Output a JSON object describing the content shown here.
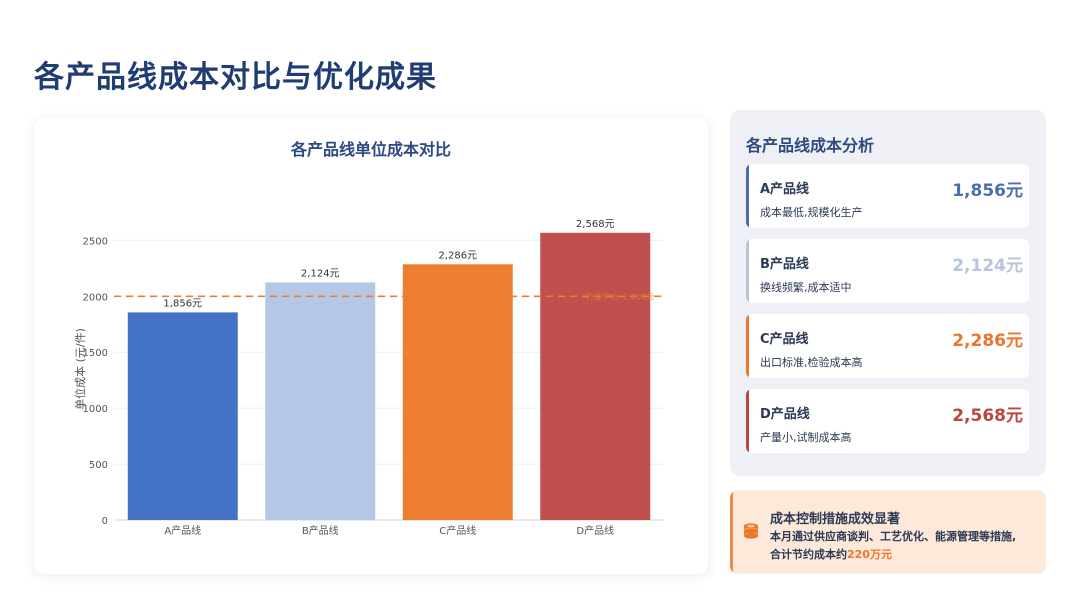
{
  "page": {
    "title": "各产品线成本对比与优化成果"
  },
  "chart_data": {
    "type": "bar",
    "title": "各产品线单位成本对比",
    "categories": [
      "A产品线",
      "B产品线",
      "C产品线",
      "D产品线"
    ],
    "values": [
      1856,
      2124,
      2286,
      2568
    ],
    "data_labels": [
      "1,856元",
      "2,124元",
      "2,286元",
      "2,568元"
    ],
    "colors": [
      "#4472c4",
      "#b4c7e7",
      "#ed7d31",
      "#c0504d"
    ],
    "ylabel": "单位成本 (元/件)",
    "xlabel": "",
    "ylim": [
      0,
      2700
    ],
    "yticks": [
      0,
      500,
      1000,
      1500,
      2000,
      2500
    ],
    "grid": true,
    "reference_line": {
      "value": 2000,
      "label": "行业平均: 2,000元",
      "color": "#ed7d31"
    }
  },
  "analysis": {
    "title": "各产品线成本分析",
    "items": [
      {
        "name": "A产品线",
        "desc": "成本最低,规模化生产",
        "value": "1,856元",
        "color": "#4a6fb0",
        "bar_color": "#4a6fb0"
      },
      {
        "name": "B产品线",
        "desc": "换线频繁,成本适中",
        "value": "2,124元",
        "color": "#b6c4dc",
        "bar_color": "#b6c4dc"
      },
      {
        "name": "C产品线",
        "desc": "出口标准,检验成本高",
        "value": "2,286元",
        "color": "#e9762b",
        "bar_color": "#e9762b"
      },
      {
        "name": "D产品线",
        "desc": "产量小,试制成本高",
        "value": "2,568元",
        "color": "#b8453f",
        "bar_color": "#b8453f"
      }
    ]
  },
  "summary": {
    "title": "成本控制措施成效显著",
    "line1": "本月通过供应商谈判、工艺优化、能源管理等措施,",
    "line2_prefix": "合计节约成本约",
    "line2_highlight": "220万元",
    "icon": "coins-icon"
  }
}
